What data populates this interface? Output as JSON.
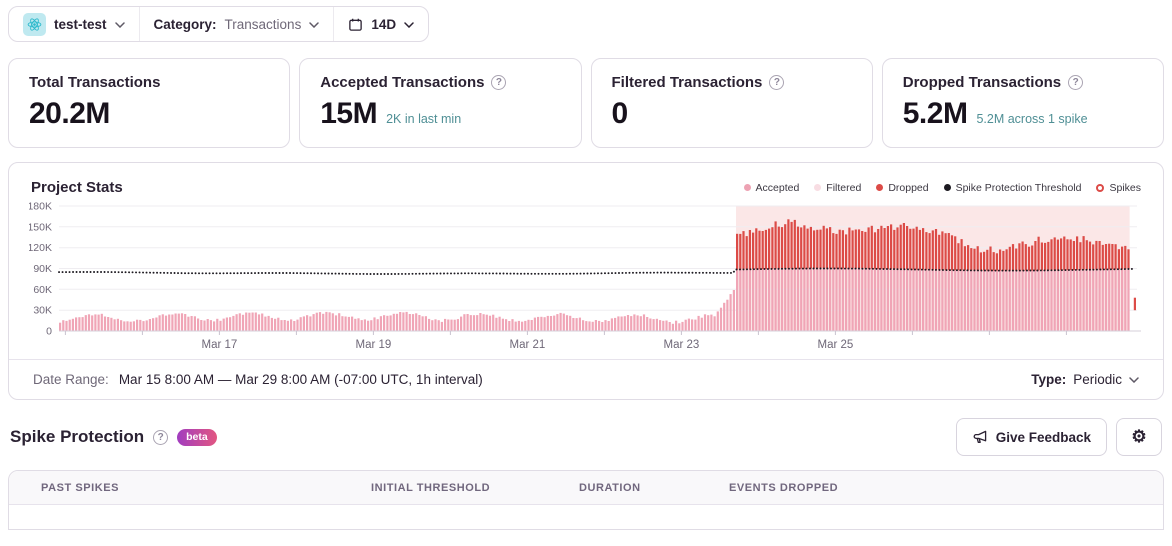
{
  "topbar": {
    "project": {
      "name": "test-test",
      "platform": "react"
    },
    "category_label": "Category:",
    "category_value": "Transactions",
    "date_range_value": "14D"
  },
  "stat_cards": [
    {
      "label": "Total Transactions",
      "value": "20.2M",
      "subtext": ""
    },
    {
      "label": "Accepted Transactions",
      "value": "15M",
      "subtext": "2K in last min"
    },
    {
      "label": "Filtered Transactions",
      "value": "0",
      "subtext": ""
    },
    {
      "label": "Dropped Transactions",
      "value": "5.2M",
      "subtext": "5.2M across 1 spike"
    }
  ],
  "chart": {
    "title": "Project Stats",
    "legend": [
      {
        "label": "Accepted",
        "color": "#eda2b3",
        "marker": "dot"
      },
      {
        "label": "Filtered",
        "color": "#f8dde3",
        "marker": "dot"
      },
      {
        "label": "Dropped",
        "color": "#dc4b47",
        "marker": "dot"
      },
      {
        "label": "Spike Protection Threshold",
        "color": "#1d1a21",
        "marker": "dot"
      },
      {
        "label": "Spikes",
        "color": "#dc4b47",
        "marker": "ring"
      }
    ]
  },
  "chart_data": {
    "type": "bar",
    "stacked": true,
    "title": "Project Stats",
    "x_start": "Mar 15 8:00 AM",
    "x_end": "Mar 29 8:00 AM",
    "x_interval": "1h",
    "n_bars": 336,
    "ylim": [
      0,
      180000
    ],
    "y_ticks": [
      "180K",
      "150K",
      "120K",
      "90K",
      "60K",
      "30K",
      "0"
    ],
    "y_tick_values": [
      180000,
      150000,
      120000,
      90000,
      60000,
      30000,
      0
    ],
    "x_tick_labels": [
      "Mar 17",
      "Mar 19",
      "Mar 21",
      "Mar 23",
      "Mar 25"
    ],
    "x_label_indices": [
      50,
      98,
      146,
      194,
      242
    ],
    "day_tick_start": 2,
    "day_tick_step": 24,
    "series_colors": {
      "accepted": "#f0a5b6",
      "filtered": "#f8dde3",
      "dropped": "#dc4b47",
      "threshold": "#1d1a21",
      "spike_region": "#fbe7e7"
    },
    "pre_spike": {
      "base": 16000,
      "daily_wave": 5200,
      "noise": 5000,
      "accepted_min": 8000,
      "accepted_max": 31000
    },
    "threshold_line": {
      "pre_spike_level": 84000,
      "spike_level": 88500,
      "variation": 1500
    },
    "spike": {
      "start_index": 211,
      "end_index": 333,
      "peak_index": 243,
      "total_min": 110000,
      "total_max": 169000,
      "dropped_total_label": "5.2M"
    },
    "last_bar": {
      "type": "dropped",
      "from": 30000,
      "to": 48000
    },
    "seed": 1337,
    "grid": true,
    "legend_position": "top-right"
  },
  "chart_footer": {
    "date_range_label": "Date Range:",
    "date_range_value": "Mar 15 8:00 AM — Mar 29 8:00 AM (-07:00 UTC, 1h interval)",
    "type_label": "Type:",
    "type_value": "Periodic"
  },
  "spike_section": {
    "title": "Spike Protection",
    "beta_badge": "beta",
    "give_feedback_label": "Give Feedback",
    "table_headers": [
      "PAST SPIKES",
      "INITIAL THRESHOLD",
      "DURATION",
      "EVENTS DROPPED"
    ]
  }
}
